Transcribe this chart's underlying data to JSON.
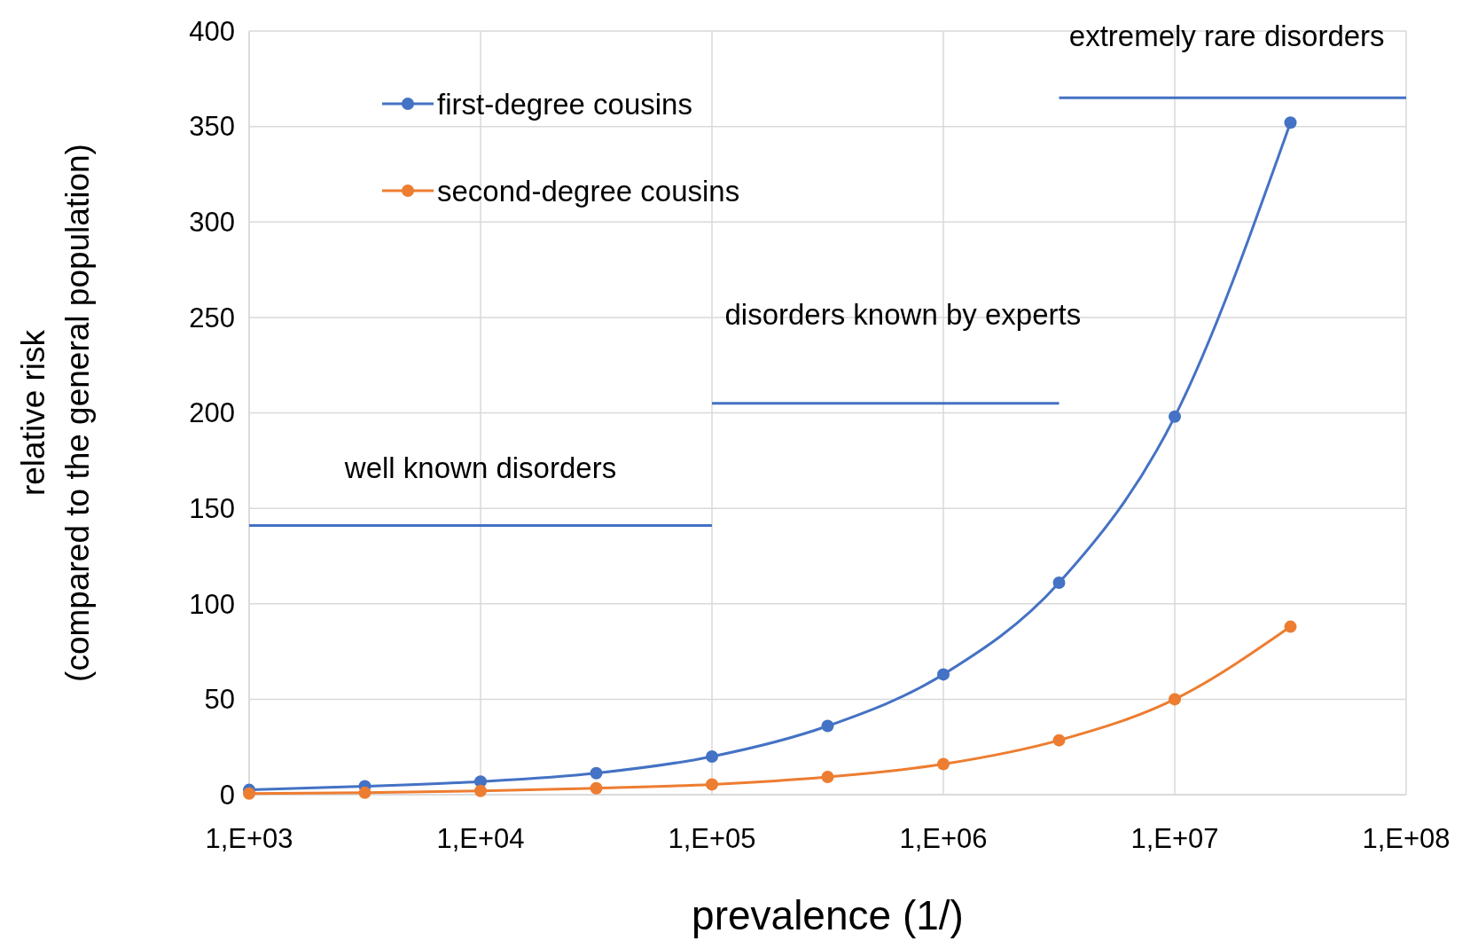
{
  "chart_data": {
    "type": "line",
    "xlabel": "prevalence (1/)",
    "ylabel": "relative risk\n(compared to the general population)",
    "categories": [
      "1,E+03",
      null,
      "1,E+04",
      null,
      "1,E+05",
      null,
      "1,E+06",
      null,
      "1,E+07",
      null,
      "1,E+08"
    ],
    "series": [
      {
        "name": "first-degree cousins",
        "color": "#4472c4",
        "values": [
          2.5,
          4.4,
          6.9,
          11.3,
          20,
          36,
          63,
          111,
          198,
          352,
          null
        ],
        "marker": "circle"
      },
      {
        "name": "second-degree cousins",
        "color": "#ed7d31",
        "values": [
          0.6,
          1,
          2,
          3.4,
          5.4,
          9.3,
          16,
          28.5,
          50,
          88,
          null
        ],
        "marker": "circle"
      },
      {
        "color": "#4472c4",
        "values": [
          141,
          141,
          141,
          141,
          141,
          null,
          null,
          null,
          null,
          null,
          null
        ],
        "marker": "none"
      },
      {
        "color": "#4472c4",
        "values": [
          null,
          null,
          null,
          null,
          205,
          205,
          205,
          205,
          null,
          null,
          null
        ],
        "marker": "none"
      },
      {
        "color": "#4472c4",
        "values": [
          null,
          null,
          null,
          null,
          null,
          null,
          null,
          365,
          365,
          365,
          365
        ],
        "marker": "none"
      }
    ],
    "annotations": [
      "well known disorders",
      "disorders known by experts",
      "extremely rare disorders"
    ],
    "ylim": [
      0,
      400
    ],
    "yticks": [
      0,
      50,
      100,
      150,
      200,
      250,
      300,
      350,
      400
    ],
    "grid": true,
    "legend": "top left",
    "line_style": "solid"
  }
}
